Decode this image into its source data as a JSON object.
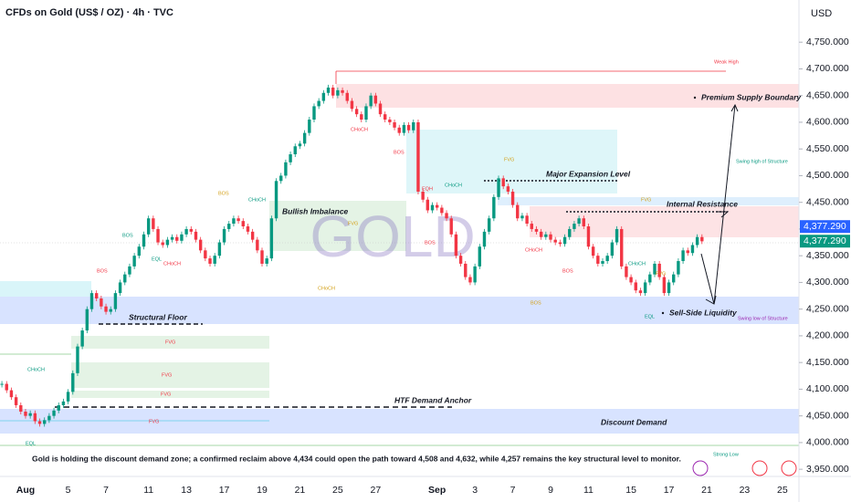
{
  "chart_data": {
    "type": "candlestick",
    "title": "CFDs on Gold (US$ / OZ) · 4h · TVC",
    "currency": "USD",
    "watermark": "GOLD",
    "colors": {
      "up": "#089981",
      "down": "#f23645"
    },
    "values": [
      4110,
      4098,
      4085,
      4070,
      4058,
      4050,
      4055,
      4040,
      4035,
      4042,
      4050,
      4060,
      4070,
      4077,
      4095,
      4130,
      4180,
      4210,
      4250,
      4280,
      4270,
      4255,
      4245,
      4250,
      4280,
      4300,
      4315,
      4330,
      4350,
      4367,
      4390,
      4420,
      4400,
      4375,
      4370,
      4380,
      4385,
      4378,
      4390,
      4400,
      4395,
      4380,
      4360,
      4345,
      4335,
      4350,
      4375,
      4400,
      4410,
      4420,
      4415,
      4405,
      4395,
      4380,
      4360,
      4335,
      4345,
      4420,
      4490,
      4500,
      4525,
      4540,
      4555,
      4560,
      4580,
      4605,
      4630,
      4640,
      4655,
      4665,
      4650,
      4660,
      4655,
      4640,
      4625,
      4615,
      4605,
      4630,
      4650,
      4635,
      4615,
      4605,
      4600,
      4590,
      4580,
      4595,
      4585,
      4600,
      4470,
      4455,
      4435,
      4445,
      4440,
      4430,
      4420,
      4390,
      4350,
      4335,
      4310,
      4300,
      4330,
      4367,
      4395,
      4420,
      4460,
      4495,
      4480,
      4470,
      4445,
      4420,
      4425,
      4410,
      4400,
      4395,
      4385,
      4390,
      4380,
      4375,
      4372,
      4385,
      4400,
      4410,
      4420,
      4405,
      4367,
      4350,
      4335,
      4340,
      4350,
      4375,
      4400,
      4330,
      4310,
      4300,
      4285,
      4280,
      4300,
      4315,
      4335,
      4310,
      4280,
      4300,
      4315,
      4340,
      4360,
      4355,
      4370,
      4385,
      4377
    ],
    "ylim": [
      3940,
      4829
    ],
    "yticks": [
      {
        "value": 3950,
        "label": "3,950.000"
      },
      {
        "value": 4000,
        "label": "4,000.000"
      },
      {
        "value": 4050,
        "label": "4,050.000"
      },
      {
        "value": 4100,
        "label": "4,100.000"
      },
      {
        "value": 4150,
        "label": "4,150.000"
      },
      {
        "value": 4200,
        "label": "4,200.000"
      },
      {
        "value": 4250,
        "label": "4,250.000"
      },
      {
        "value": 4300,
        "label": "4,300.000"
      },
      {
        "value": 4350,
        "label": "4,350.000"
      },
      {
        "value": 4400,
        "label": "4,400.000"
      },
      {
        "value": 4450,
        "label": "4,450.000"
      },
      {
        "value": 4500,
        "label": "4,500.000"
      },
      {
        "value": 4550,
        "label": "4,550.000"
      },
      {
        "value": 4600,
        "label": "4,600.000"
      },
      {
        "value": 4650,
        "label": "4,650.000"
      },
      {
        "value": 4700,
        "label": "4,700.000"
      },
      {
        "value": 4750,
        "label": "4,750.000"
      }
    ],
    "xlim": [
      -0.4,
      168.5
    ],
    "xticks": [
      {
        "value": 5,
        "label": "Aug"
      },
      {
        "value": 14,
        "label": "5"
      },
      {
        "value": 22,
        "label": "7"
      },
      {
        "value": 31,
        "label": "11"
      },
      {
        "value": 39,
        "label": "13"
      },
      {
        "value": 47,
        "label": "17"
      },
      {
        "value": 55,
        "label": "19"
      },
      {
        "value": 63,
        "label": "21"
      },
      {
        "value": 71,
        "label": "25"
      },
      {
        "value": 79,
        "label": "27"
      },
      {
        "value": 92,
        "label": "Sep"
      },
      {
        "value": 100,
        "label": "3"
      },
      {
        "value": 108,
        "label": "7"
      },
      {
        "value": 116,
        "label": "9"
      },
      {
        "value": 124,
        "label": "11"
      },
      {
        "value": 133,
        "label": "15"
      },
      {
        "value": 141,
        "label": "17"
      },
      {
        "value": 149,
        "label": "21"
      },
      {
        "value": 157,
        "label": "23"
      },
      {
        "value": 165,
        "label": "25"
      }
    ],
    "price_labels": [
      {
        "value": 4377.29,
        "label": "4,377.290",
        "color": "#2962ff"
      },
      {
        "value": 4377.29,
        "label": "4,377.290",
        "color": "#089981"
      }
    ],
    "annotations": [
      "Weak High",
      "Premium Supply Boundary",
      "Swing high of Structure",
      "Major Expansion Level",
      "Internal Resistance",
      "Bullish Imbalance",
      "Structural Floor",
      "HTF Demand Anchor",
      "Discount Demand",
      "Sell-Side Liquidity",
      "Swing low of Structure",
      "Strong Low"
    ],
    "small_labels": [
      "CHoCH",
      "FVG",
      "FVG",
      "FVG",
      "FVG",
      "EQL",
      "BOS",
      "BOS",
      "EQL",
      "CHoCH",
      "BOS",
      "CHoCH",
      "CHoCH",
      "CHoCH",
      "BOS",
      "FVG",
      "EQH",
      "CHoCH",
      "BOS",
      "FVG",
      "CHoCH",
      "BOS",
      "CHoCH",
      "EQL",
      "BOS",
      "FVG",
      "FVG"
    ],
    "caption": "Gold is holding the discount demand zone; a confirmed reclaim above 4,434 could open the path toward 4,508 and 4,632, while 4,257 remains the key structural level to monitor."
  }
}
